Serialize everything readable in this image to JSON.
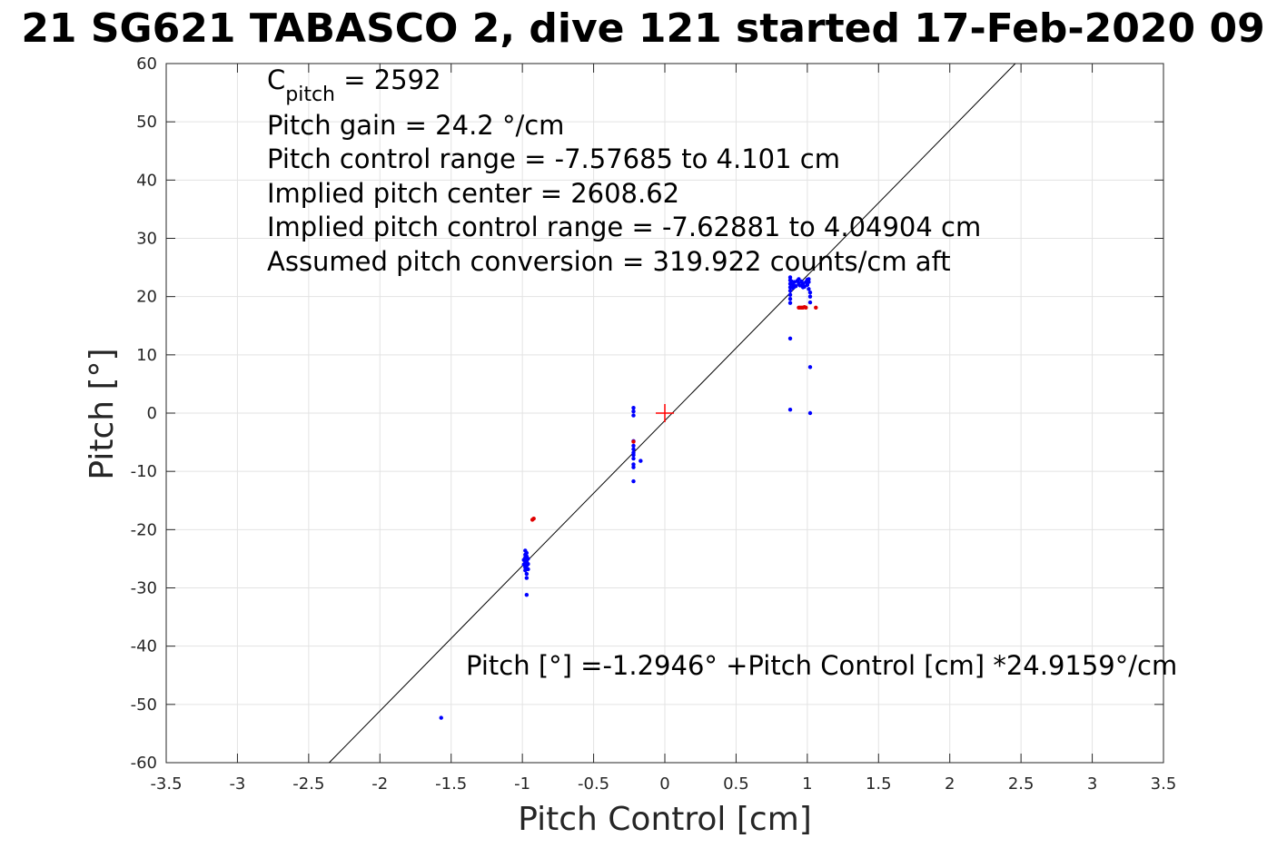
{
  "chart_data": {
    "type": "scatter",
    "title": "21 SG621 TABASCO 2, dive 121 started 17-Feb-2020 09",
    "xlabel": "Pitch Control [cm]",
    "ylabel": "Pitch [°]",
    "xlim": [
      -3.5,
      3.5
    ],
    "ylim": [
      -60,
      60
    ],
    "xticks": [
      -3.5,
      -3,
      -2.5,
      -2,
      -1.5,
      -1,
      -0.5,
      0,
      0.5,
      1,
      1.5,
      2,
      2.5,
      3,
      3.5
    ],
    "xtick_labels": [
      "-3.5",
      "-3",
      "-2.5",
      "-2",
      "-1.5",
      "-1",
      "-0.5",
      "0",
      "0.5",
      "1",
      "1.5",
      "2",
      "2.5",
      "3",
      "3.5"
    ],
    "yticks": [
      -60,
      -50,
      -40,
      -30,
      -20,
      -10,
      0,
      10,
      20,
      30,
      40,
      50,
      60
    ],
    "ytick_labels": [
      "-60",
      "-50",
      "-40",
      "-30",
      "-20",
      "-10",
      "0",
      "10",
      "20",
      "30",
      "40",
      "50",
      "60"
    ],
    "grid": true,
    "annotations": {
      "c_pitch_main": "C",
      "c_pitch_sub": "pitch",
      "c_pitch_value": " = 2592",
      "lines": [
        "Pitch gain = 24.2 °/cm",
        "Pitch control range = -7.57685 to 4.101 cm",
        "Implied pitch center = 2608.62",
        "Implied pitch control range = -7.62881 to 4.04904 cm",
        "Assumed pitch conversion = 319.922 counts/cm aft"
      ],
      "fit_equation": "Pitch [°] =-1.2946° +Pitch Control [cm] *24.9159°/cm"
    },
    "fit_line": {
      "intercept": -1.2946,
      "slope": 24.9159,
      "color": "#000000"
    },
    "center_marker": {
      "x": 0,
      "y": 0,
      "color": "#ff0000"
    },
    "series": [
      {
        "color": "#0000ff",
        "points": [
          [
            -1.57,
            -52.3
          ],
          [
            -0.97,
            -31.2
          ],
          [
            -0.97,
            -28.3
          ],
          [
            -0.97,
            -27.6
          ],
          [
            -0.98,
            -27.0
          ],
          [
            -0.96,
            -26.8
          ],
          [
            -0.98,
            -26.5
          ],
          [
            -0.97,
            -26.2
          ],
          [
            -0.99,
            -26.0
          ],
          [
            -0.96,
            -25.9
          ],
          [
            -0.98,
            -25.6
          ],
          [
            -0.97,
            -25.4
          ],
          [
            -0.99,
            -25.2
          ],
          [
            -0.96,
            -25.0
          ],
          [
            -0.98,
            -24.8
          ],
          [
            -0.97,
            -24.6
          ],
          [
            -0.98,
            -24.3
          ],
          [
            -0.97,
            -24.0
          ],
          [
            -0.98,
            -23.6
          ],
          [
            -0.22,
            -11.7
          ],
          [
            -0.22,
            -9.3
          ],
          [
            -0.22,
            -8.8
          ],
          [
            -0.17,
            -8.2
          ],
          [
            -0.22,
            -7.8
          ],
          [
            -0.22,
            -7.2
          ],
          [
            -0.22,
            -6.8
          ],
          [
            -0.22,
            -6.2
          ],
          [
            -0.22,
            -5.6
          ],
          [
            -0.22,
            -4.8
          ],
          [
            -0.22,
            -0.4
          ],
          [
            -0.22,
            0.3
          ],
          [
            -0.22,
            0.9
          ],
          [
            0.88,
            0.6
          ],
          [
            0.88,
            12.8
          ],
          [
            1.02,
            0.0
          ],
          [
            1.02,
            7.9
          ],
          [
            0.88,
            18.9
          ],
          [
            0.88,
            19.6
          ],
          [
            0.88,
            20.3
          ],
          [
            0.88,
            21.0
          ],
          [
            0.88,
            21.6
          ],
          [
            0.88,
            22.2
          ],
          [
            0.88,
            22.8
          ],
          [
            0.88,
            23.3
          ],
          [
            0.9,
            22.0
          ],
          [
            0.91,
            22.5
          ],
          [
            0.92,
            21.8
          ],
          [
            0.93,
            22.7
          ],
          [
            0.94,
            22.3
          ],
          [
            0.95,
            21.9
          ],
          [
            0.96,
            22.6
          ],
          [
            0.97,
            22.2
          ],
          [
            0.98,
            21.7
          ],
          [
            0.99,
            22.5
          ],
          [
            1.0,
            22.9
          ],
          [
            1.0,
            22.0
          ],
          [
            1.01,
            22.5
          ],
          [
            1.01,
            21.3
          ],
          [
            1.02,
            20.7
          ],
          [
            1.02,
            20.0
          ],
          [
            1.02,
            19.0
          ],
          [
            1.01,
            23.0
          ],
          [
            0.89,
            22.6
          ],
          [
            0.9,
            21.5
          ],
          [
            0.94,
            23.0
          ],
          [
            0.97,
            21.6
          ]
        ]
      },
      {
        "color": "#e00000",
        "points": [
          [
            -0.93,
            -18.3
          ],
          [
            -0.92,
            -18.1
          ],
          [
            -0.22,
            -4.9
          ],
          [
            0.94,
            18.1
          ],
          [
            0.95,
            18.1
          ],
          [
            0.96,
            18.1
          ],
          [
            0.97,
            18.1
          ],
          [
            0.98,
            18.2
          ],
          [
            0.99,
            18.1
          ],
          [
            1.06,
            18.1
          ]
        ]
      }
    ]
  }
}
